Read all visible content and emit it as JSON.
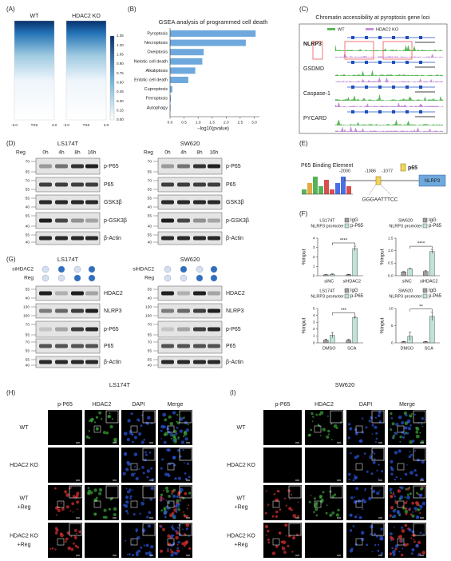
{
  "panel_labels": [
    "(A)",
    "(B)",
    "(C)",
    "(D)",
    "(E)",
    "(F)",
    "(G)",
    "(H)",
    "(I)"
  ],
  "heatmap": {
    "columns": [
      "WT",
      "HDAC2 KO"
    ],
    "colorbar_ticks": [
      "1.35",
      "1.20",
      "1.05",
      "0.90",
      "0.75",
      "0.60",
      "0.45",
      "0.30",
      "0.15",
      "0.00"
    ],
    "x_labels": [
      "-3.0",
      "TSS",
      "3.0"
    ]
  },
  "chromatin": {
    "title": "Chromatin accessibility at pyroptosis gene loci",
    "legend": [
      {
        "name": "WT",
        "color": "#5cb85c"
      },
      {
        "name": "HDAC2 KO",
        "color": "#c28fd6"
      }
    ],
    "genes": [
      "NLRP3",
      "GSDMD",
      "Caspase-1",
      "PYCARD"
    ]
  },
  "western_D": {
    "reg_label": "Reg",
    "times": [
      "0h",
      "4h",
      "8h",
      "16h"
    ],
    "cell_lines": [
      "LS174T",
      "SW620"
    ],
    "proteins": [
      "p-P65",
      "P65",
      "GSK3β",
      "p-GSK3β",
      "β-Actin"
    ],
    "markers": [
      [
        "70",
        "55"
      ],
      [
        "70",
        "55"
      ],
      [
        "55",
        "40"
      ],
      [
        "55",
        "40"
      ],
      [
        "55",
        "40"
      ]
    ]
  },
  "binding": {
    "title": "P65 Binding Element",
    "positions": [
      "-2000",
      "-1086",
      "-1077"
    ],
    "factor": "p65",
    "gene": "NLRP3",
    "sequence": "GGGAATTTCC"
  },
  "western_G": {
    "cell_lines": [
      "LS174T",
      "SW620"
    ],
    "on_color": "#2f6fc0",
    "off_color": "#d5dfee",
    "conditions": [
      {
        "name": "siHDAC2",
        "states": [
          false,
          true,
          false,
          true
        ]
      },
      {
        "name": "Reg",
        "states": [
          false,
          false,
          true,
          true
        ]
      }
    ],
    "proteins": [
      "HDAC2",
      "NLRP3",
      "p-P65",
      "P65",
      "β-Actin"
    ],
    "markers": [
      [
        "55",
        "40"
      ],
      [
        "130",
        "100"
      ],
      [
        "70",
        "55"
      ],
      [
        "70",
        "55"
      ],
      [
        "55",
        "40"
      ]
    ]
  },
  "imaging": {
    "cell_lines": [
      "LS174T",
      "SW620"
    ],
    "channels": [
      {
        "name": "p-P65",
        "color": "#e03030"
      },
      {
        "name": "HDAC2",
        "color": "#3aa53a"
      },
      {
        "name": "DAPI",
        "color": "#2a55e0"
      },
      {
        "name": "Merge",
        "color": "#222222"
      }
    ],
    "rows": [
      [
        "WT"
      ],
      [
        "HDAC2 KO"
      ],
      [
        "WT",
        "+Reg"
      ],
      [
        "HDAC2 KO",
        "+Reg"
      ]
    ]
  },
  "chart_data": [
    {
      "type": "barh",
      "title": "GSEA analysis of programmed cell death",
      "categories": [
        "Pyroptosis",
        "Necroptosis",
        "Oxeiptosis",
        "Netotic cell death",
        "Alkaliptosis",
        "Entotic cell death",
        "Cuproptosis",
        "Ferroptosis",
        "Autophagy"
      ],
      "values": [
        3.05,
        2.7,
        1.2,
        1.15,
        0.9,
        0.65,
        0.08,
        0.03,
        0.02
      ],
      "color": "#6fa8dc",
      "label_colors": [
        "#e03030",
        "#222222",
        "#222222",
        "#222222",
        "#222222",
        "#222222",
        "#222222",
        "#222222",
        "#222222"
      ],
      "xlabel": "−log10(pvalue)",
      "xlim": [
        0,
        3.1
      ],
      "xticks": [
        {
          "value": 0,
          "label": "0.0"
        },
        {
          "value": 0.5,
          "label": "0.5"
        },
        {
          "value": 1,
          "label": "1.0"
        },
        {
          "value": 1.5,
          "label": "1.5"
        },
        {
          "value": 2,
          "label": "2.0"
        },
        {
          "value": 2.5,
          "label": "2.5"
        },
        {
          "value": 3,
          "label": "3.0"
        }
      ]
    },
    {
      "type": "bar",
      "title": "LS174T",
      "subtitle": "NLRP3 promoter",
      "categories": [
        "siNC",
        "siHDAC2"
      ],
      "series": [
        {
          "name": "IgG",
          "color": "#9e9e9e",
          "values": [
            0.1,
            0.12
          ],
          "errors": [
            0.03,
            0.03
          ]
        },
        {
          "name": "p-P65",
          "color": "#bfe3d8",
          "values": [
            0.15,
            2.9
          ],
          "errors": [
            0.05,
            0.25
          ]
        }
      ],
      "ylabel": "%input",
      "ylim": [
        0,
        4
      ],
      "yticks": [
        0,
        1,
        2,
        3,
        4
      ],
      "annotation": "****"
    },
    {
      "type": "bar",
      "title": "SW620",
      "subtitle": "NLRP3 promoter",
      "categories": [
        "siNC",
        "siHDAC2"
      ],
      "series": [
        {
          "name": "IgG",
          "color": "#9e9e9e",
          "values": [
            0.15,
            0.17
          ],
          "errors": [
            0.02,
            0.03
          ]
        },
        {
          "name": "p-P65",
          "color": "#bfe3d8",
          "values": [
            0.27,
            0.97
          ],
          "errors": [
            0.02,
            0.08
          ]
        }
      ],
      "ylabel": "%input",
      "ylim": [
        0,
        1.5
      ],
      "yticks": [
        {
          "value": 0,
          "label": "0.0"
        },
        {
          "value": 0.5,
          "label": "0.5"
        },
        {
          "value": 1,
          "label": "1.0"
        },
        {
          "value": 1.5,
          "label": "1.5"
        }
      ],
      "annotation": "****"
    },
    {
      "type": "bar",
      "title": "LS174T",
      "subtitle": "NLRP3 promoter",
      "categories": [
        "DMSO",
        "SCA"
      ],
      "series": [
        {
          "name": "IgG",
          "color": "#9e9e9e",
          "values": [
            0.4,
            0.4
          ],
          "errors": [
            0.15,
            0.1
          ]
        },
        {
          "name": "p-P65",
          "color": "#bfe3d8",
          "values": [
            1.1,
            3.7
          ],
          "errors": [
            0.4,
            0.2
          ]
        }
      ],
      "ylabel": "%input",
      "ylim": [
        0,
        5
      ],
      "yticks": [
        0,
        1,
        2,
        3,
        4,
        5
      ],
      "annotation": "***"
    },
    {
      "type": "bar",
      "title": "SW620",
      "subtitle": "NLRP3 promoter",
      "categories": [
        "DMSO",
        "SCA"
      ],
      "series": [
        {
          "name": "IgG",
          "color": "#9e9e9e",
          "values": [
            0.3,
            0.3
          ],
          "errors": [
            0.1,
            0.1
          ]
        },
        {
          "name": "p-P65",
          "color": "#bfe3d8",
          "values": [
            1.9,
            7.7
          ],
          "errors": [
            1.2,
            1.2
          ]
        }
      ],
      "ylabel": "%input",
      "ylim": [
        0,
        10
      ],
      "yticks": [
        0,
        5,
        10
      ],
      "annotation": "**"
    }
  ]
}
